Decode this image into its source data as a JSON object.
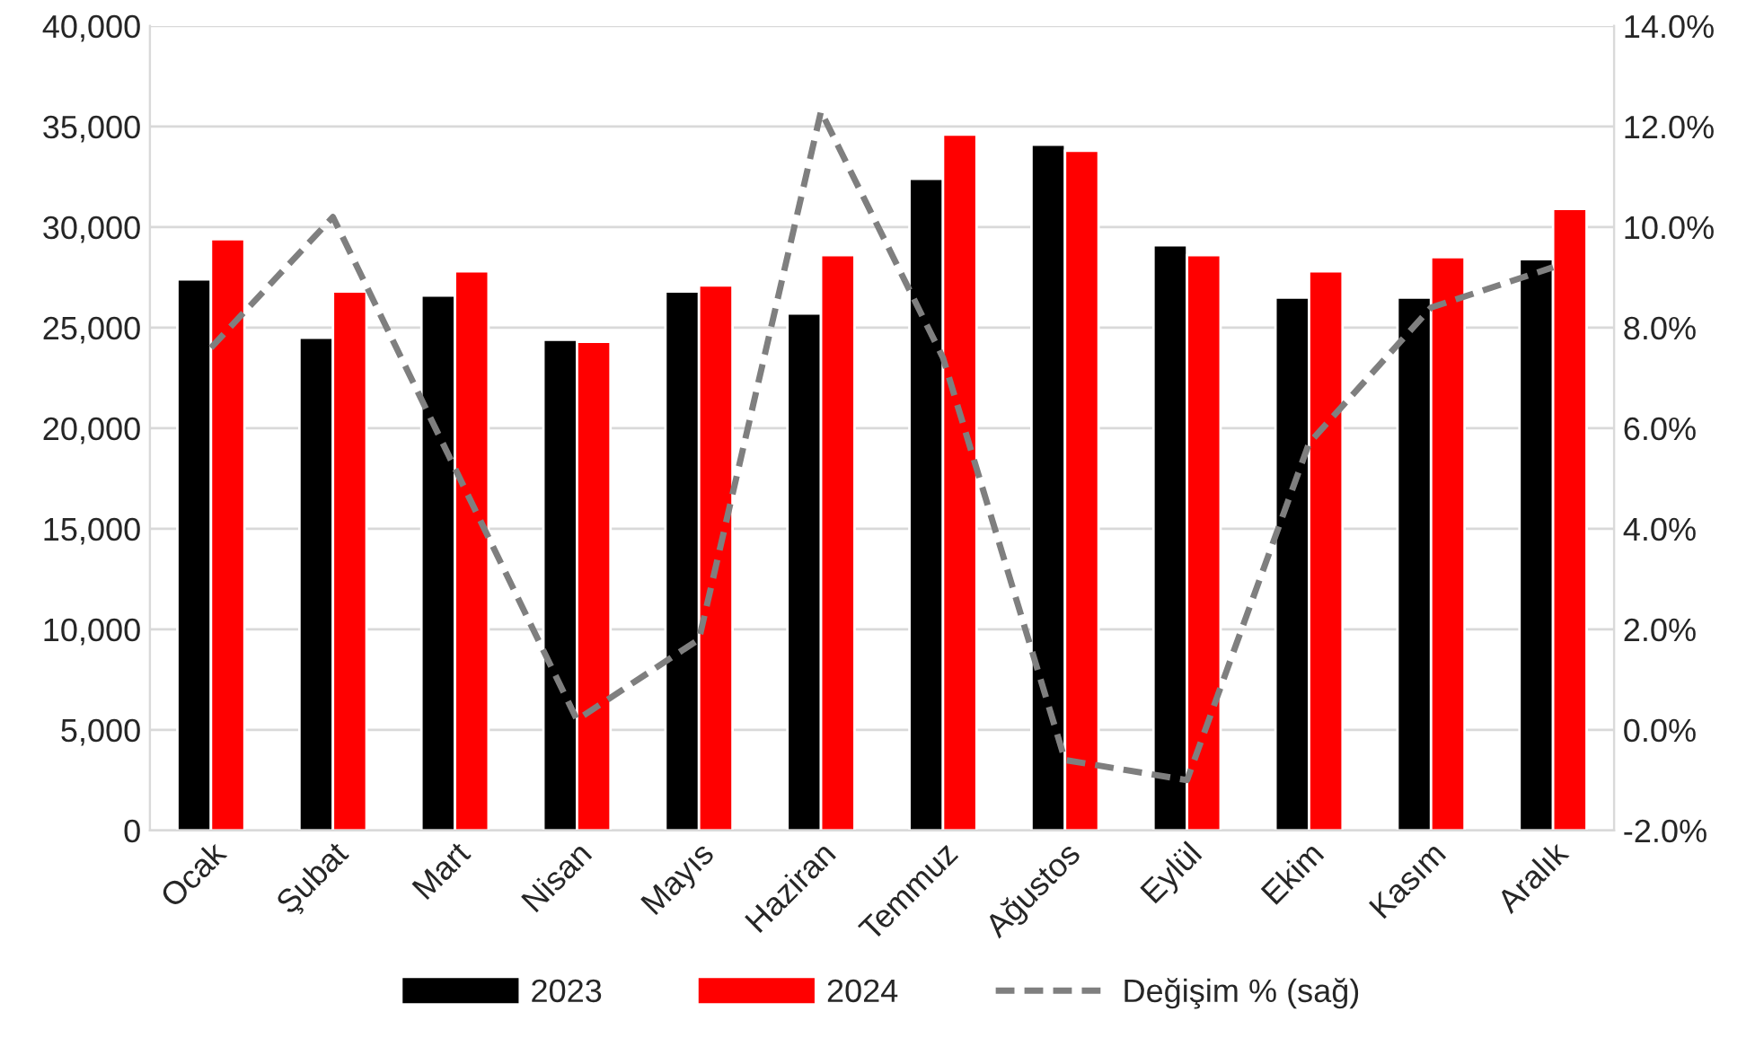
{
  "chart_data": {
    "type": "bar",
    "categories": [
      "Ocak",
      "Şubat",
      "Mart",
      "Nisan",
      "Mayıs",
      "Haziran",
      "Temmuz",
      "Ağustos",
      "Eylül",
      "Ekim",
      "Kasım",
      "Aralık"
    ],
    "series": [
      {
        "name": "2023",
        "color": "#000000",
        "values": [
          27400,
          24500,
          26600,
          24400,
          26800,
          25700,
          32400,
          34100,
          29100,
          26500,
          26500,
          28400
        ]
      },
      {
        "name": "2024",
        "color": "#ff0000",
        "values": [
          29400,
          26800,
          27800,
          24300,
          27100,
          28600,
          34600,
          33800,
          28600,
          27800,
          28500,
          30900
        ]
      },
      {
        "name": "Değişim % (sağ)",
        "type": "line",
        "axis": "y2",
        "color": "#7f7f7f",
        "line_style": "dashed",
        "values": [
          7.6,
          10.2,
          5.2,
          0.2,
          1.8,
          12.3,
          7.4,
          -0.6,
          -1.0,
          5.7,
          8.4,
          9.2
        ]
      }
    ],
    "ylim": [
      0,
      40000
    ],
    "yticks": [
      0,
      {
        "value": 5000,
        "label": "5,000"
      },
      {
        "value": 10000,
        "label": "10,000"
      },
      {
        "value": 15000,
        "label": "15,000"
      },
      {
        "value": 20000,
        "label": "20,000"
      },
      {
        "value": 25000,
        "label": "25,000"
      },
      {
        "value": 30000,
        "label": "30,000"
      },
      {
        "value": 35000,
        "label": "35,000"
      },
      {
        "value": 40000,
        "label": "40,000"
      }
    ],
    "y2lim": [
      -2,
      14
    ],
    "y2ticks": [
      {
        "value": -2,
        "label": "-2.0%"
      },
      {
        "value": 0,
        "label": "0.0%"
      },
      {
        "value": 2,
        "label": "2.0%"
      },
      {
        "value": 4,
        "label": "4.0%"
      },
      {
        "value": 6,
        "label": "6.0%"
      },
      {
        "value": 8,
        "label": "8.0%"
      },
      {
        "value": 10,
        "label": "10.0%"
      },
      {
        "value": 12,
        "label": "12.0%"
      },
      {
        "value": 14,
        "label": "14.0%"
      }
    ],
    "grid": "y",
    "legend": "bottom"
  }
}
